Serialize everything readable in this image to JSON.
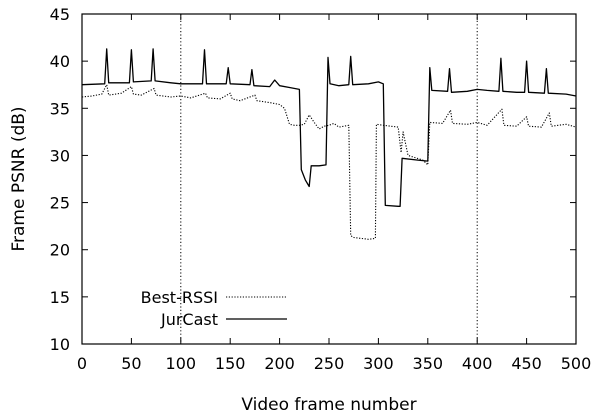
{
  "chart_data": {
    "type": "line",
    "xlabel": "Video frame number",
    "ylabel": "Frame PSNR (dB)",
    "xlim": [
      0,
      500
    ],
    "ylim": [
      10,
      45
    ],
    "xticks": [
      0,
      50,
      100,
      150,
      200,
      250,
      300,
      350,
      400,
      450,
      500
    ],
    "yticks": [
      10,
      15,
      20,
      25,
      30,
      35,
      40,
      45
    ],
    "xtick_labels": [
      "0",
      "50",
      "100",
      "150",
      "200",
      "250",
      "300",
      "350",
      "400",
      "450",
      "500"
    ],
    "ytick_labels": [
      "10",
      "15",
      "20",
      "25",
      "30",
      "35",
      "40",
      "45"
    ],
    "vlines": [
      100,
      400
    ],
    "legend_position": "bottom-left",
    "series": [
      {
        "name": "Best-RSSI",
        "style": "dotted",
        "color": "#000000",
        "points": [
          [
            0,
            36.2
          ],
          [
            10,
            36.3
          ],
          [
            20,
            36.5
          ],
          [
            25,
            37.5
          ],
          [
            27,
            36.4
          ],
          [
            40,
            36.6
          ],
          [
            50,
            37.3
          ],
          [
            52,
            36.5
          ],
          [
            60,
            36.4
          ],
          [
            73,
            37.1
          ],
          [
            75,
            36.4
          ],
          [
            90,
            36.2
          ],
          [
            100,
            36.3
          ],
          [
            110,
            36.1
          ],
          [
            125,
            36.6
          ],
          [
            127,
            36.1
          ],
          [
            140,
            36.0
          ],
          [
            150,
            36.6
          ],
          [
            152,
            36.0
          ],
          [
            160,
            35.8
          ],
          [
            175,
            36.4
          ],
          [
            177,
            35.8
          ],
          [
            190,
            35.6
          ],
          [
            200,
            35.4
          ],
          [
            205,
            35.0
          ],
          [
            210,
            33.3
          ],
          [
            215,
            33.2
          ],
          [
            220,
            33.2
          ],
          [
            225,
            33.3
          ],
          [
            230,
            34.3
          ],
          [
            235,
            33.5
          ],
          [
            240,
            32.8
          ],
          [
            245,
            33.1
          ],
          [
            250,
            33.2
          ],
          [
            255,
            33.4
          ],
          [
            260,
            33.0
          ],
          [
            265,
            33.1
          ],
          [
            270,
            33.2
          ],
          [
            272,
            21.5
          ],
          [
            275,
            21.3
          ],
          [
            290,
            21.1
          ],
          [
            297,
            21.2
          ],
          [
            298,
            33.3
          ],
          [
            305,
            33.2
          ],
          [
            320,
            33.0
          ],
          [
            323,
            30.3
          ],
          [
            325,
            32.5
          ],
          [
            330,
            30.0
          ],
          [
            345,
            29.5
          ],
          [
            350,
            29.0
          ],
          [
            352,
            33.5
          ],
          [
            365,
            33.4
          ],
          [
            373,
            34.8
          ],
          [
            375,
            33.4
          ],
          [
            390,
            33.3
          ],
          [
            400,
            33.5
          ],
          [
            410,
            33.2
          ],
          [
            425,
            34.9
          ],
          [
            427,
            33.2
          ],
          [
            440,
            33.1
          ],
          [
            450,
            34.1
          ],
          [
            452,
            33.1
          ],
          [
            465,
            33.0
          ],
          [
            473,
            34.5
          ],
          [
            475,
            33.1
          ],
          [
            490,
            33.3
          ],
          [
            500,
            33.0
          ]
        ]
      },
      {
        "name": "JurCast",
        "style": "solid",
        "color": "#000000",
        "points": [
          [
            0,
            37.5
          ],
          [
            23,
            37.6
          ],
          [
            25,
            41.3
          ],
          [
            27,
            37.7
          ],
          [
            48,
            37.7
          ],
          [
            50,
            41.2
          ],
          [
            52,
            37.8
          ],
          [
            70,
            37.9
          ],
          [
            72,
            41.3
          ],
          [
            74,
            37.9
          ],
          [
            90,
            37.7
          ],
          [
            100,
            37.6
          ],
          [
            122,
            37.6
          ],
          [
            124,
            41.2
          ],
          [
            126,
            37.6
          ],
          [
            146,
            37.6
          ],
          [
            148,
            39.3
          ],
          [
            150,
            37.6
          ],
          [
            170,
            37.5
          ],
          [
            172,
            39.1
          ],
          [
            174,
            37.4
          ],
          [
            190,
            37.3
          ],
          [
            195,
            38.0
          ],
          [
            200,
            37.4
          ],
          [
            210,
            37.2
          ],
          [
            220,
            37.0
          ],
          [
            222,
            28.5
          ],
          [
            226,
            27.4
          ],
          [
            230,
            26.7
          ],
          [
            232,
            28.9
          ],
          [
            240,
            28.9
          ],
          [
            247,
            29.0
          ],
          [
            249,
            40.4
          ],
          [
            251,
            37.6
          ],
          [
            260,
            37.4
          ],
          [
            270,
            37.5
          ],
          [
            272,
            40.5
          ],
          [
            274,
            37.5
          ],
          [
            290,
            37.6
          ],
          [
            300,
            37.8
          ],
          [
            305,
            37.6
          ],
          [
            307,
            24.7
          ],
          [
            320,
            24.6
          ],
          [
            322,
            24.6
          ],
          [
            324,
            29.7
          ],
          [
            340,
            29.5
          ],
          [
            350,
            29.4
          ],
          [
            352,
            39.3
          ],
          [
            354,
            36.9
          ],
          [
            370,
            36.8
          ],
          [
            372,
            39.2
          ],
          [
            374,
            36.7
          ],
          [
            390,
            36.8
          ],
          [
            400,
            37.0
          ],
          [
            410,
            36.9
          ],
          [
            422,
            36.8
          ],
          [
            424,
            40.3
          ],
          [
            426,
            36.8
          ],
          [
            440,
            36.7
          ],
          [
            448,
            36.7
          ],
          [
            450,
            40.0
          ],
          [
            452,
            36.7
          ],
          [
            468,
            36.6
          ],
          [
            470,
            39.2
          ],
          [
            472,
            36.6
          ],
          [
            490,
            36.5
          ],
          [
            500,
            36.3
          ]
        ]
      }
    ]
  }
}
